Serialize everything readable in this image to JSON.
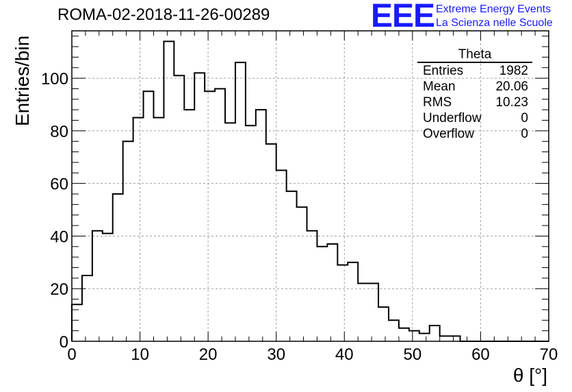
{
  "header": {
    "title": "ROMA-02-2018-11-26-00289",
    "logo_text": "EEE",
    "logo_line1": "Extreme Energy Events",
    "logo_line2": "La Scienza nelle Scuole"
  },
  "colors": {
    "logo_blue": "#1a1aff",
    "histogram_line": "#000000",
    "grid": "#a0a0a0"
  },
  "stats_box": {
    "title": "Theta",
    "rows": [
      {
        "label": "Entries",
        "value": "1982"
      },
      {
        "label": "Mean",
        "value": "20.06"
      },
      {
        "label": "RMS",
        "value": "10.23"
      },
      {
        "label": "Underflow",
        "value": "0"
      },
      {
        "label": "Overflow",
        "value": "0"
      }
    ]
  },
  "chart_data": {
    "type": "bar",
    "style": "step-histogram",
    "title": "ROMA-02-2018-11-26-00289",
    "xlabel": "θ [°]",
    "ylabel": "Entries/bin",
    "xlim": [
      0,
      70
    ],
    "ylim": [
      0,
      118
    ],
    "grid": true,
    "x_ticks": [
      0,
      10,
      20,
      30,
      40,
      50,
      60,
      70
    ],
    "y_ticks": [
      0,
      20,
      40,
      60,
      80,
      100
    ],
    "bin_width": 1.5,
    "bin_edges_start": 0,
    "series": [
      {
        "values": [
          14,
          25,
          42,
          41,
          56,
          76,
          85,
          95,
          85,
          114,
          101,
          88,
          102,
          95,
          96,
          83,
          106,
          82,
          88,
          75,
          65,
          57,
          51,
          42,
          36,
          37,
          29,
          30,
          22,
          22,
          13,
          8,
          5,
          4,
          3,
          6,
          2,
          2,
          0,
          0,
          0,
          0,
          0,
          0,
          0,
          0,
          0
        ]
      }
    ]
  }
}
